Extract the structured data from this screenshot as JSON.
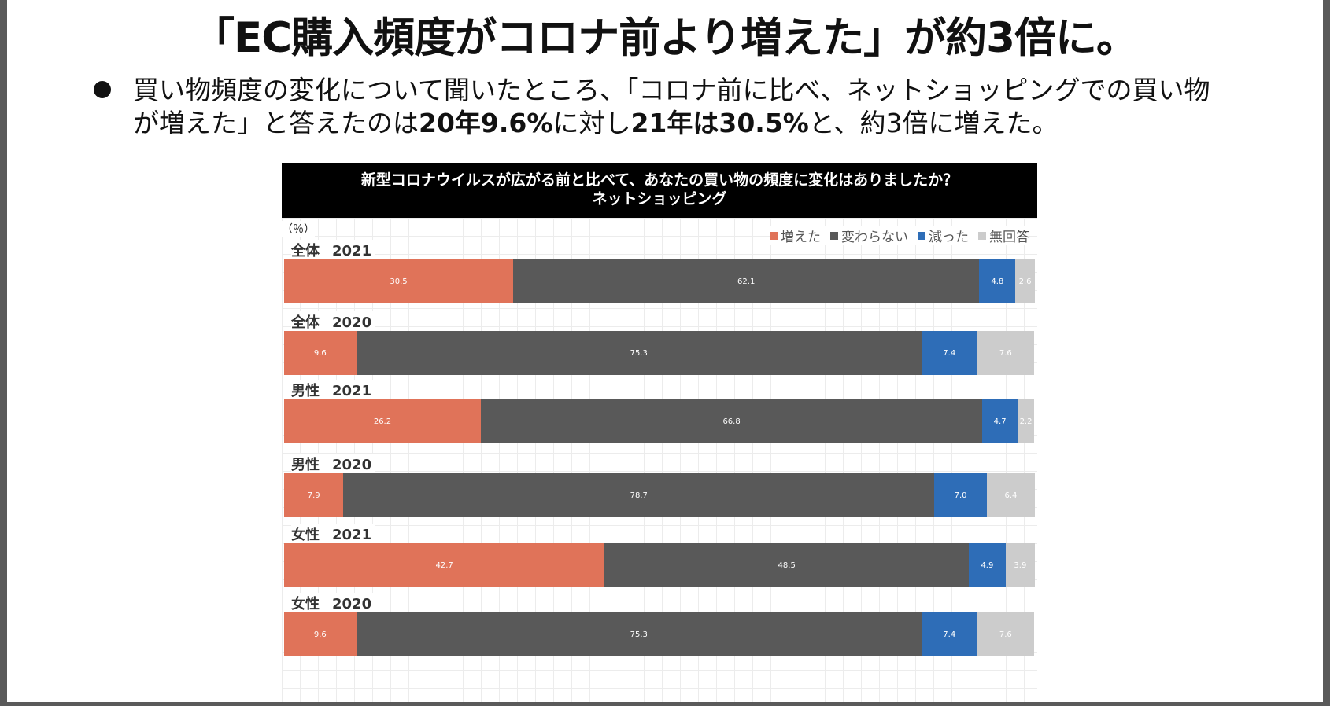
{
  "slide": {
    "title": "「EC購入頻度がコロナ前より増えた」が約3倍に。",
    "bullet": {
      "line1": "買い物頻度の変化について聞いたところ、「コロナ前に比べ、ネットショッピングでの買い物",
      "line2_a": "が増えた」と答えたのは",
      "line2_b": "20年9.6%",
      "line2_c": "に対し",
      "line2_d": "21年は30.5%",
      "line2_e": "と、約3倍に増えた。"
    }
  },
  "chart_data": {
    "type": "bar",
    "orientation": "horizontal",
    "stacked": true,
    "title": "新型コロナウイルスが広がる前と比べて、あなたの買い物の頻度に変化はありましたか？",
    "subtitle": "ネットショッピング",
    "unit_label": "（％）",
    "xlim": [
      0,
      100
    ],
    "grid": true,
    "legend_position": "top-right",
    "categories": [
      {
        "group": "全体",
        "year": "2021"
      },
      {
        "group": "全体",
        "year": "2020"
      },
      {
        "group": "男性",
        "year": "2021"
      },
      {
        "group": "男性",
        "year": "2020"
      },
      {
        "group": "女性",
        "year": "2021"
      },
      {
        "group": "女性",
        "year": "2020"
      }
    ],
    "series": [
      {
        "name": "増えた",
        "color": "#e07359",
        "label_color": "#ffffff",
        "values": [
          30.5,
          9.6,
          26.2,
          7.9,
          42.7,
          9.6
        ],
        "labels": [
          "30.5",
          "9.6",
          "26.2",
          "7.9",
          "42.7",
          "9.6"
        ]
      },
      {
        "name": "変わらない",
        "color": "#595959",
        "label_color": "#ffffff",
        "values": [
          62.1,
          75.3,
          66.8,
          78.7,
          48.5,
          75.3
        ],
        "labels": [
          "62.1",
          "75.3",
          "66.8",
          "78.7",
          "48.5",
          "75.3"
        ]
      },
      {
        "name": "減った",
        "color": "#2e6db7",
        "label_color": "#ffffff",
        "values": [
          4.8,
          7.4,
          4.7,
          7.0,
          4.9,
          7.4
        ],
        "labels": [
          "4.8",
          "7.4",
          "4.7",
          "7.0",
          "4.9",
          "7.4"
        ]
      },
      {
        "name": "無回答",
        "color": "#cccccc",
        "label_color": "#ffffff",
        "values": [
          2.6,
          7.6,
          2.2,
          6.4,
          3.9,
          7.6
        ],
        "labels": [
          "2.6",
          "7.6",
          "2.2",
          "6.4",
          "3.9",
          "7.6"
        ]
      }
    ]
  }
}
